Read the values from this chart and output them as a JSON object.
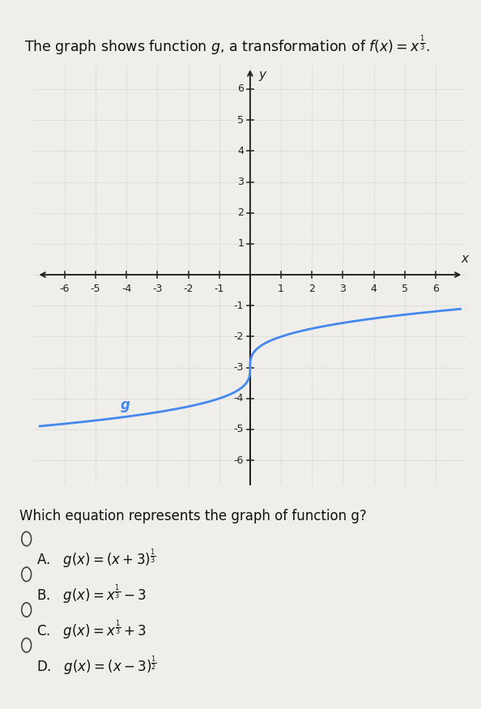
{
  "title_plain": "The graph shows function g, a transformation of ",
  "title_math": "f(x) = x^{\\frac{1}{3}}",
  "question": "Which equation represents the graph of function g?",
  "curve_color": "#4488ee",
  "curve_label": "g",
  "xlim": [
    -7.0,
    7.0
  ],
  "ylim": [
    -6.8,
    6.8
  ],
  "xticks": [
    -6,
    -5,
    -4,
    -3,
    -2,
    -1,
    1,
    2,
    3,
    4,
    5,
    6
  ],
  "yticks": [
    -6,
    -5,
    -4,
    -3,
    -2,
    -1,
    1,
    2,
    3,
    4,
    5,
    6
  ],
  "grid_color": "#bbbbbb",
  "bg_color": "#f0eeeb",
  "plot_bg": "#eeebe6",
  "axis_color": "#222222",
  "tick_fontsize": 9,
  "title_fontsize": 12.5,
  "choice_fontsize": 12,
  "question_fontsize": 12
}
